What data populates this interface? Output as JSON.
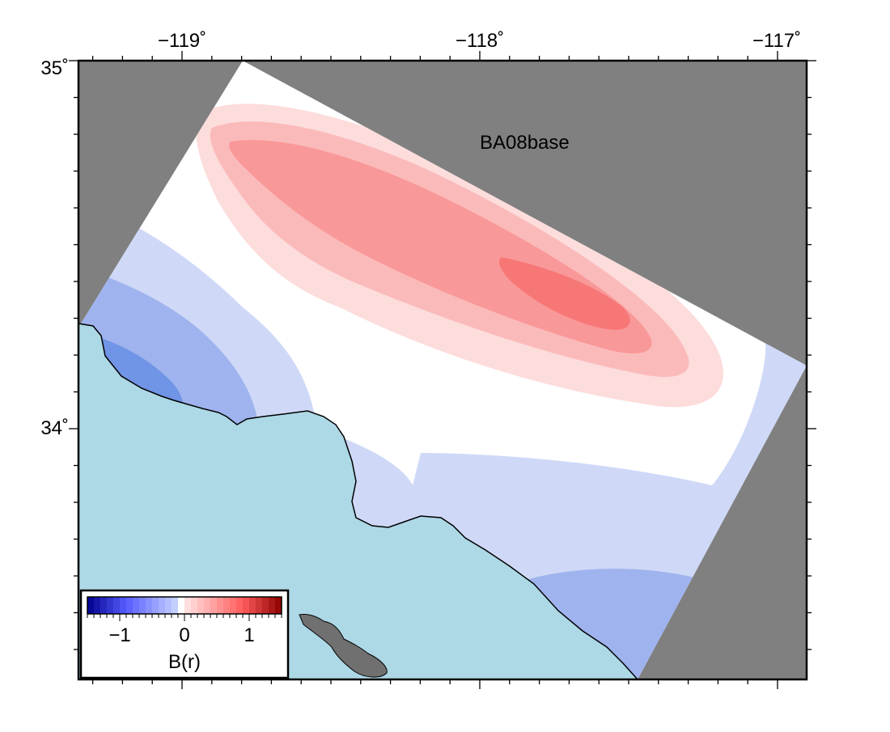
{
  "map": {
    "label": "BA08base",
    "x_axis": {
      "ticks": [
        {
          "value": -119,
          "text": "−119˚"
        },
        {
          "value": -118,
          "text": "−118˚"
        },
        {
          "value": -117,
          "text": "−117˚"
        }
      ]
    },
    "y_axis": {
      "ticks": [
        {
          "value": 35,
          "text": "35˚"
        },
        {
          "value": 34,
          "text": "34˚"
        }
      ]
    },
    "extent": {
      "lon_min": -119.35,
      "lon_max": -116.9,
      "lat_min": 33.32,
      "lat_max": 35.02
    },
    "colors": {
      "land_mask": "#808080",
      "ocean": "#add8e6",
      "island": "#707070",
      "coastline": "#000000"
    }
  },
  "colorbar": {
    "label": "B(r)",
    "ticks": [
      {
        "value": -1,
        "text": "−1"
      },
      {
        "value": 0,
        "text": "0"
      },
      {
        "value": 1,
        "text": "1"
      }
    ],
    "range": [
      -1.5,
      1.5
    ],
    "step": 0.1
  }
}
